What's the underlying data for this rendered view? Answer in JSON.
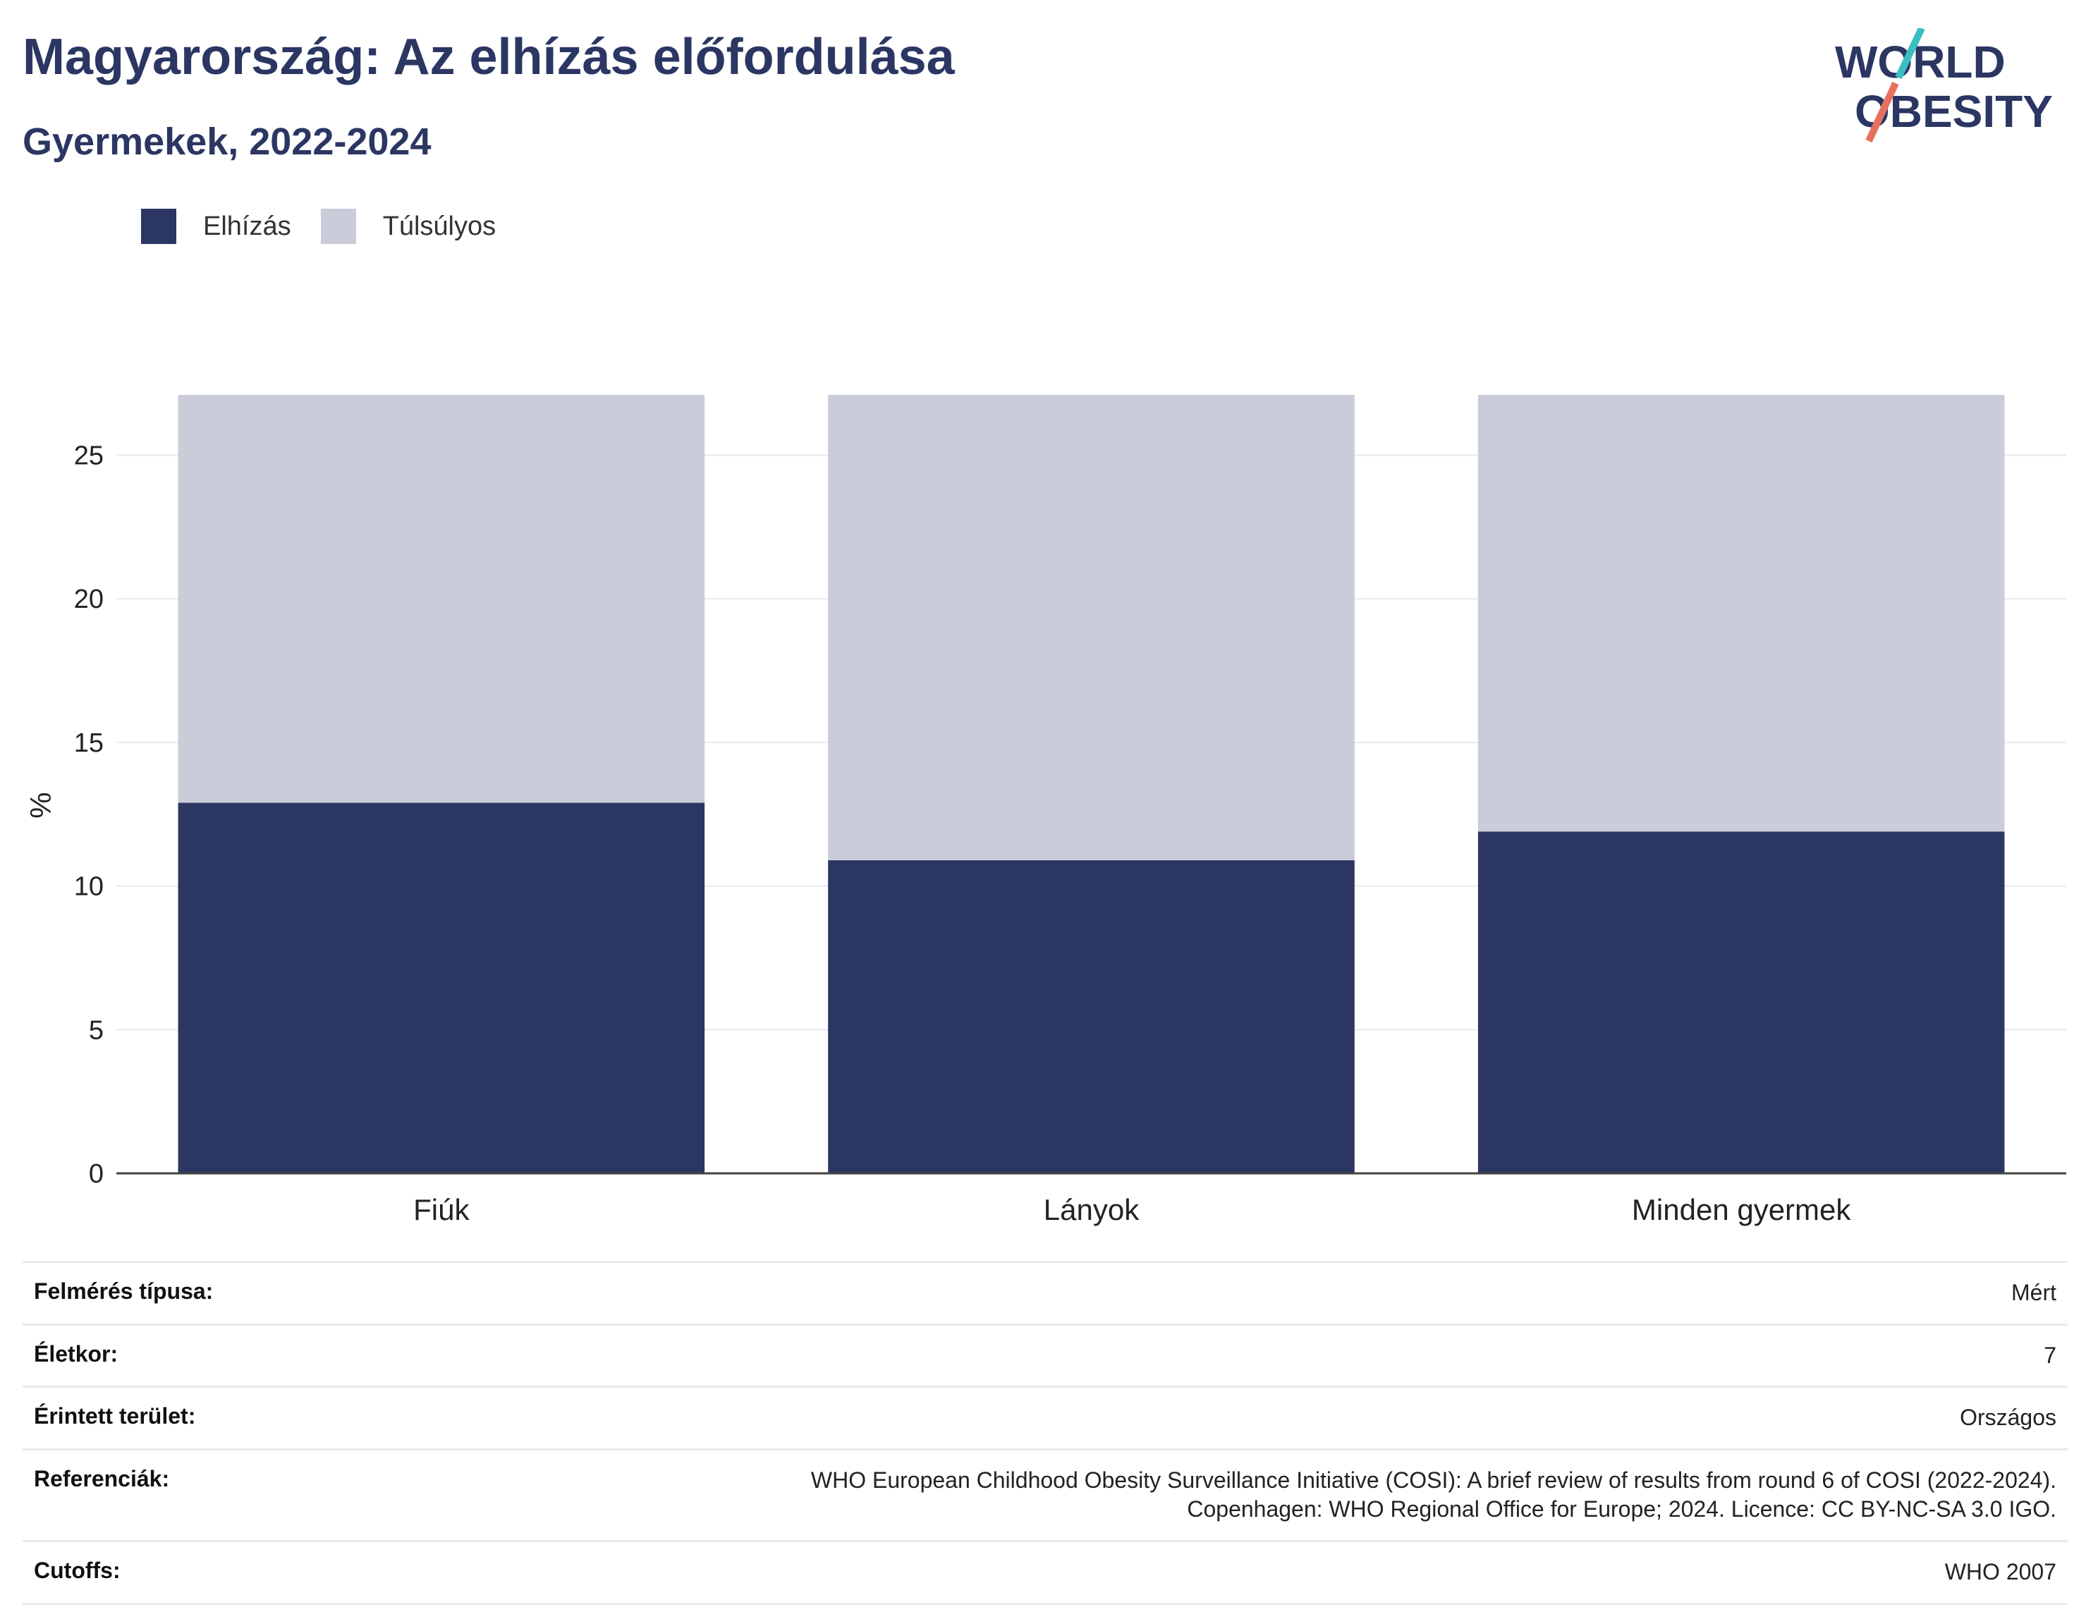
{
  "header": {
    "title": "Magyarország: Az elhízás előfordulása",
    "subtitle": "Gyermekek, 2022-2024",
    "logo_line1": "WORLD",
    "logo_line2": "OBESITY"
  },
  "colors": {
    "obesity": "#2b3663",
    "overweight": "#cacdd9",
    "title": "#2b3663",
    "logo_teal": "#3bbfc3",
    "logo_coral": "#e8705f"
  },
  "chart_data": {
    "type": "bar",
    "stacked": true,
    "categories": [
      "Fiúk",
      "Lányok",
      "Minden gyermek"
    ],
    "series": [
      {
        "name": "Elhízás",
        "values": [
          12.9,
          10.9,
          11.9
        ]
      },
      {
        "name": "Túlsúlyos",
        "values": [
          14.2,
          16.2,
          15.2
        ]
      }
    ],
    "ylabel": "%",
    "ylim": [
      0,
      27.1
    ],
    "yticks": [
      0,
      5,
      10,
      15,
      20,
      25
    ],
    "grid": true,
    "legend": "top-left"
  },
  "meta": [
    {
      "label": "Felmérés típusa:",
      "value": "Mért"
    },
    {
      "label": "Életkor:",
      "value": "7"
    },
    {
      "label": "Érintett terület:",
      "value": "Országos"
    },
    {
      "label": "Referenciák:",
      "value": "WHO European Childhood Obesity Surveillance Initiative (COSI): A brief review of results from round 6 of COSI (2022-2024).",
      "value2": "Copenhagen: WHO Regional Office for Europe; 2024. Licence: CC BY-NC-SA 3.0 IGO."
    },
    {
      "label": "Cutoffs:",
      "value": "WHO 2007"
    }
  ]
}
